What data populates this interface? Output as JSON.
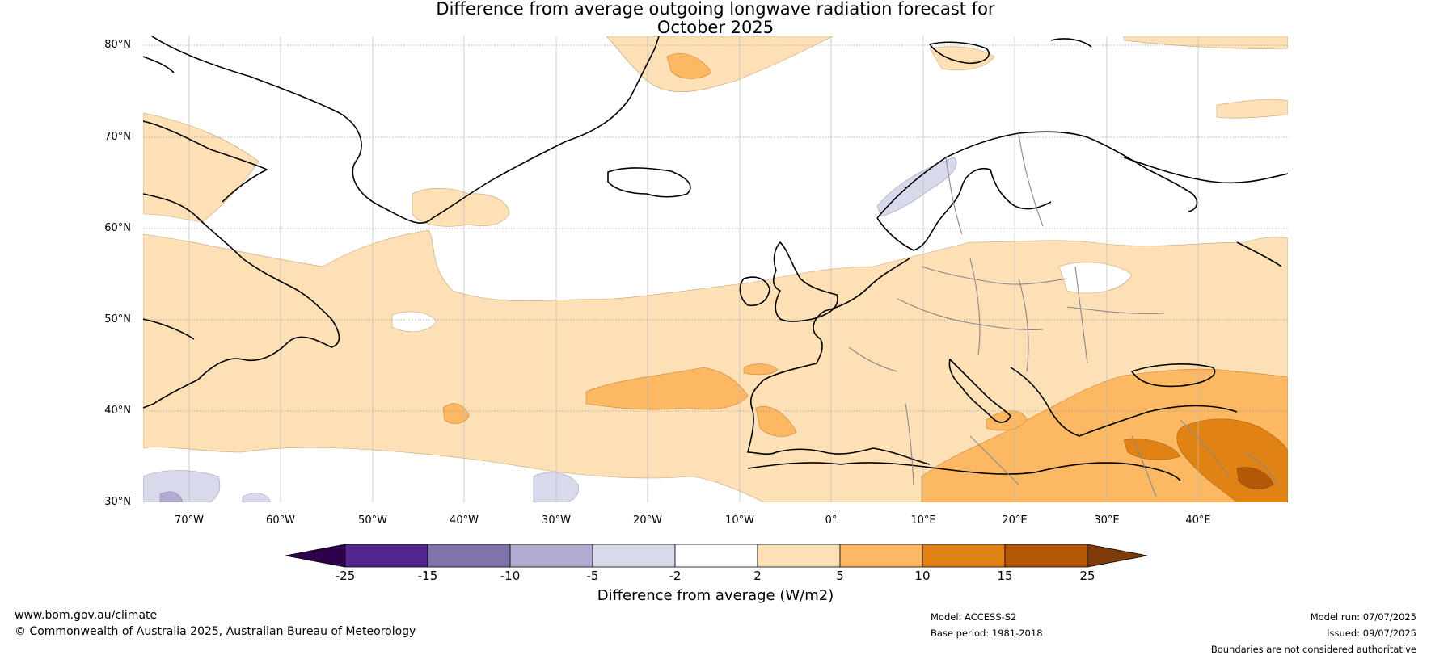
{
  "title": {
    "line1": "Difference from average outgoing longwave radiation forecast for",
    "line2": "October 2025"
  },
  "latitude_labels": [
    "80°N",
    "70°N",
    "60°N",
    "50°N",
    "40°N",
    "30°N"
  ],
  "longitude_labels": [
    "70°W",
    "60°W",
    "50°W",
    "40°W",
    "30°W",
    "20°W",
    "10°W",
    "0°",
    "10°E",
    "20°E",
    "30°E",
    "40°E"
  ],
  "colorbar": {
    "ticks": [
      "-25",
      "-15",
      "-10",
      "-5",
      "-2",
      "2",
      "5",
      "10",
      "15",
      "25"
    ],
    "colors": [
      "#54278f",
      "#8073ac",
      "#b2abd2",
      "#d8daeb",
      "#ffffff",
      "#fde0b6",
      "#fdb863",
      "#e08214",
      "#b35806"
    ],
    "extend_low_color": "#2d004b",
    "extend_high_color": "#7f3b08",
    "label": "Difference from average (W/m2)"
  },
  "footer": {
    "website": "www.bom.gov.au/climate",
    "copyright": "© Commonwealth of Australia 2025, Australian Bureau of Meteorology",
    "model": "Model: ACCESS-S2",
    "base_period": "Base period: 1981-2018",
    "model_run": "Model run: 07/07/2025",
    "issued": "Issued: 09/07/2025",
    "disclaimer": "Boundaries are not considered authoritative"
  }
}
